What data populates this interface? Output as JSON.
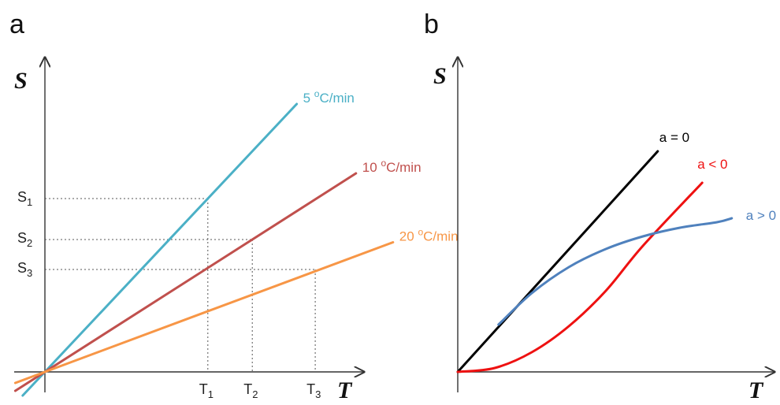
{
  "chart_data": [
    {
      "type": "line",
      "panel": "a",
      "ylabel": "S",
      "xlabel": "T",
      "xlim": [
        -0.5,
        5.2
      ],
      "ylim": [
        -0.3,
        4.7
      ],
      "grid": false,
      "series": [
        {
          "name": "5 °C/min",
          "label_main": "5 ",
          "label_sup": "o",
          "label_tail": "C/min",
          "color": "#4bb0c6",
          "x": [
            -0.3,
            3.4
          ],
          "y": [
            -0.3,
            3.4
          ]
        },
        {
          "name": "10 °C/min",
          "label_main": "10 ",
          "label_sup": "o",
          "label_tail": "C/min",
          "color": "#c0504d",
          "x": [
            -0.4,
            4.2
          ],
          "y": [
            -0.24,
            2.52
          ]
        },
        {
          "name": "20 °C/min",
          "label_main": "20 ",
          "label_sup": "o",
          "label_tail": "C/min",
          "color": "#f79646",
          "x": [
            -0.4,
            4.7
          ],
          "y": [
            -0.14,
            1.645
          ]
        }
      ],
      "x_marks": [
        {
          "label": "T",
          "sub": "1",
          "value": 2.2
        },
        {
          "label": "T",
          "sub": "2",
          "value": 2.8
        },
        {
          "label": "T",
          "sub": "3",
          "value": 3.65
        }
      ],
      "y_marks": [
        {
          "label": "S",
          "sub": "1",
          "value": 2.2
        },
        {
          "label": "S",
          "sub": "2",
          "value": 1.68
        },
        {
          "label": "S",
          "sub": "3",
          "value": 1.3
        }
      ],
      "guides": [
        {
          "x": 2.2,
          "y": 2.2
        },
        {
          "x": 2.8,
          "y": 1.68
        },
        {
          "x": 3.65,
          "y": 1.3
        }
      ]
    },
    {
      "type": "line",
      "panel": "b",
      "ylabel": "S",
      "xlabel": "T",
      "xlim": [
        0,
        4.3
      ],
      "ylim": [
        0,
        4.7
      ],
      "grid": false,
      "series": [
        {
          "name": "a = 0",
          "color": "#000000",
          "x": [
            0,
            2.7
          ],
          "y": [
            0,
            2.8
          ]
        },
        {
          "name": "a < 0",
          "color": "#ee1111",
          "x": [
            0,
            0.5,
            1,
            1.5,
            2,
            2.5,
            3.3
          ],
          "y": [
            0,
            0.05,
            0.25,
            0.58,
            1.03,
            1.6,
            2.4
          ]
        },
        {
          "name": "a > 0",
          "color": "#4f81bd",
          "x": [
            0.55,
            1,
            1.5,
            2,
            2.5,
            3,
            3.5,
            3.7
          ],
          "y": [
            0.6,
            1.0,
            1.33,
            1.56,
            1.72,
            1.83,
            1.9,
            1.95
          ]
        }
      ]
    }
  ]
}
